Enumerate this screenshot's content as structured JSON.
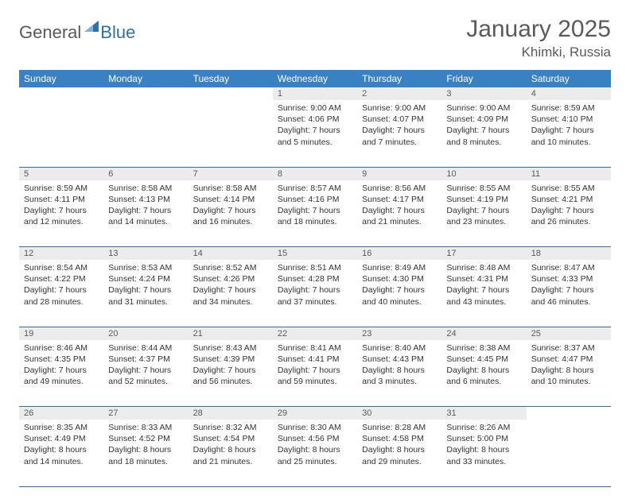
{
  "logo": {
    "general": "General",
    "blue": "Blue"
  },
  "title": "January 2025",
  "location": "Khimki, Russia",
  "colors": {
    "header_bg": "#3a81c3",
    "header_text": "#ffffff",
    "daynum_bg": "#ececec",
    "daynum_text": "#5a5a5a",
    "rule": "#2f6fad",
    "body_text": "#333333",
    "title_text": "#5a5a5a",
    "logo_gray": "#595959",
    "logo_blue": "#2f6fad"
  },
  "weekdays": [
    "Sunday",
    "Monday",
    "Tuesday",
    "Wednesday",
    "Thursday",
    "Friday",
    "Saturday"
  ],
  "weeks": [
    [
      {
        "n": "",
        "sunrise": "",
        "sunset": "",
        "day": ""
      },
      {
        "n": "",
        "sunrise": "",
        "sunset": "",
        "day": ""
      },
      {
        "n": "",
        "sunrise": "",
        "sunset": "",
        "day": ""
      },
      {
        "n": "1",
        "sunrise": "Sunrise: 9:00 AM",
        "sunset": "Sunset: 4:06 PM",
        "day": "Daylight: 7 hours and 5 minutes."
      },
      {
        "n": "2",
        "sunrise": "Sunrise: 9:00 AM",
        "sunset": "Sunset: 4:07 PM",
        "day": "Daylight: 7 hours and 7 minutes."
      },
      {
        "n": "3",
        "sunrise": "Sunrise: 9:00 AM",
        "sunset": "Sunset: 4:09 PM",
        "day": "Daylight: 7 hours and 8 minutes."
      },
      {
        "n": "4",
        "sunrise": "Sunrise: 8:59 AM",
        "sunset": "Sunset: 4:10 PM",
        "day": "Daylight: 7 hours and 10 minutes."
      }
    ],
    [
      {
        "n": "5",
        "sunrise": "Sunrise: 8:59 AM",
        "sunset": "Sunset: 4:11 PM",
        "day": "Daylight: 7 hours and 12 minutes."
      },
      {
        "n": "6",
        "sunrise": "Sunrise: 8:58 AM",
        "sunset": "Sunset: 4:13 PM",
        "day": "Daylight: 7 hours and 14 minutes."
      },
      {
        "n": "7",
        "sunrise": "Sunrise: 8:58 AM",
        "sunset": "Sunset: 4:14 PM",
        "day": "Daylight: 7 hours and 16 minutes."
      },
      {
        "n": "8",
        "sunrise": "Sunrise: 8:57 AM",
        "sunset": "Sunset: 4:16 PM",
        "day": "Daylight: 7 hours and 18 minutes."
      },
      {
        "n": "9",
        "sunrise": "Sunrise: 8:56 AM",
        "sunset": "Sunset: 4:17 PM",
        "day": "Daylight: 7 hours and 21 minutes."
      },
      {
        "n": "10",
        "sunrise": "Sunrise: 8:55 AM",
        "sunset": "Sunset: 4:19 PM",
        "day": "Daylight: 7 hours and 23 minutes."
      },
      {
        "n": "11",
        "sunrise": "Sunrise: 8:55 AM",
        "sunset": "Sunset: 4:21 PM",
        "day": "Daylight: 7 hours and 26 minutes."
      }
    ],
    [
      {
        "n": "12",
        "sunrise": "Sunrise: 8:54 AM",
        "sunset": "Sunset: 4:22 PM",
        "day": "Daylight: 7 hours and 28 minutes."
      },
      {
        "n": "13",
        "sunrise": "Sunrise: 8:53 AM",
        "sunset": "Sunset: 4:24 PM",
        "day": "Daylight: 7 hours and 31 minutes."
      },
      {
        "n": "14",
        "sunrise": "Sunrise: 8:52 AM",
        "sunset": "Sunset: 4:26 PM",
        "day": "Daylight: 7 hours and 34 minutes."
      },
      {
        "n": "15",
        "sunrise": "Sunrise: 8:51 AM",
        "sunset": "Sunset: 4:28 PM",
        "day": "Daylight: 7 hours and 37 minutes."
      },
      {
        "n": "16",
        "sunrise": "Sunrise: 8:49 AM",
        "sunset": "Sunset: 4:30 PM",
        "day": "Daylight: 7 hours and 40 minutes."
      },
      {
        "n": "17",
        "sunrise": "Sunrise: 8:48 AM",
        "sunset": "Sunset: 4:31 PM",
        "day": "Daylight: 7 hours and 43 minutes."
      },
      {
        "n": "18",
        "sunrise": "Sunrise: 8:47 AM",
        "sunset": "Sunset: 4:33 PM",
        "day": "Daylight: 7 hours and 46 minutes."
      }
    ],
    [
      {
        "n": "19",
        "sunrise": "Sunrise: 8:46 AM",
        "sunset": "Sunset: 4:35 PM",
        "day": "Daylight: 7 hours and 49 minutes."
      },
      {
        "n": "20",
        "sunrise": "Sunrise: 8:44 AM",
        "sunset": "Sunset: 4:37 PM",
        "day": "Daylight: 7 hours and 52 minutes."
      },
      {
        "n": "21",
        "sunrise": "Sunrise: 8:43 AM",
        "sunset": "Sunset: 4:39 PM",
        "day": "Daylight: 7 hours and 56 minutes."
      },
      {
        "n": "22",
        "sunrise": "Sunrise: 8:41 AM",
        "sunset": "Sunset: 4:41 PM",
        "day": "Daylight: 7 hours and 59 minutes."
      },
      {
        "n": "23",
        "sunrise": "Sunrise: 8:40 AM",
        "sunset": "Sunset: 4:43 PM",
        "day": "Daylight: 8 hours and 3 minutes."
      },
      {
        "n": "24",
        "sunrise": "Sunrise: 8:38 AM",
        "sunset": "Sunset: 4:45 PM",
        "day": "Daylight: 8 hours and 6 minutes."
      },
      {
        "n": "25",
        "sunrise": "Sunrise: 8:37 AM",
        "sunset": "Sunset: 4:47 PM",
        "day": "Daylight: 8 hours and 10 minutes."
      }
    ],
    [
      {
        "n": "26",
        "sunrise": "Sunrise: 8:35 AM",
        "sunset": "Sunset: 4:49 PM",
        "day": "Daylight: 8 hours and 14 minutes."
      },
      {
        "n": "27",
        "sunrise": "Sunrise: 8:33 AM",
        "sunset": "Sunset: 4:52 PM",
        "day": "Daylight: 8 hours and 18 minutes."
      },
      {
        "n": "28",
        "sunrise": "Sunrise: 8:32 AM",
        "sunset": "Sunset: 4:54 PM",
        "day": "Daylight: 8 hours and 21 minutes."
      },
      {
        "n": "29",
        "sunrise": "Sunrise: 8:30 AM",
        "sunset": "Sunset: 4:56 PM",
        "day": "Daylight: 8 hours and 25 minutes."
      },
      {
        "n": "30",
        "sunrise": "Sunrise: 8:28 AM",
        "sunset": "Sunset: 4:58 PM",
        "day": "Daylight: 8 hours and 29 minutes."
      },
      {
        "n": "31",
        "sunrise": "Sunrise: 8:26 AM",
        "sunset": "Sunset: 5:00 PM",
        "day": "Daylight: 8 hours and 33 minutes."
      },
      {
        "n": "",
        "sunrise": "",
        "sunset": "",
        "day": ""
      }
    ]
  ]
}
